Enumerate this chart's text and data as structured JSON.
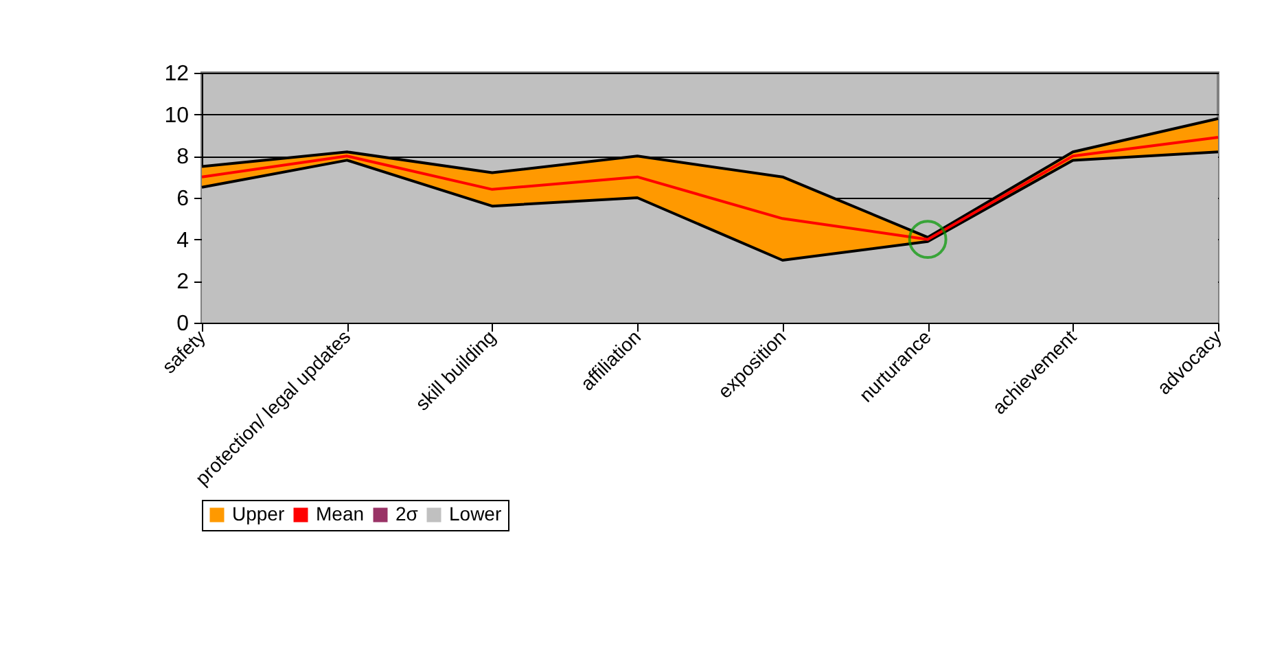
{
  "chart_data": {
    "type": "area",
    "categories": [
      "safety",
      "protection/ legal updates",
      "skill building",
      "affiliation",
      "exposition",
      "nurturance",
      "achievement",
      "advocacy"
    ],
    "series": [
      {
        "name": "Upper",
        "color": "#ff9900",
        "values": [
          7.5,
          8.2,
          7.2,
          8.0,
          7.0,
          4.1,
          8.2,
          9.8
        ]
      },
      {
        "name": "Mean",
        "type": "line",
        "color": "#ff0000",
        "values": [
          7.0,
          8.0,
          6.4,
          7.0,
          5.0,
          4.0,
          8.0,
          8.9
        ]
      },
      {
        "name": "2σ",
        "type": "line",
        "color": "#993366",
        "values": [
          null,
          null,
          null,
          null,
          null,
          null,
          null,
          null
        ]
      },
      {
        "name": "Lower",
        "color": "#c0c0c0",
        "values": [
          6.5,
          7.8,
          5.6,
          6.0,
          3.0,
          3.9,
          7.8,
          8.2
        ]
      }
    ],
    "ylim": [
      0,
      12
    ],
    "yticks": [
      0,
      2,
      4,
      6,
      8,
      10,
      12
    ],
    "grid": "y",
    "legend": "bottom left"
  }
}
